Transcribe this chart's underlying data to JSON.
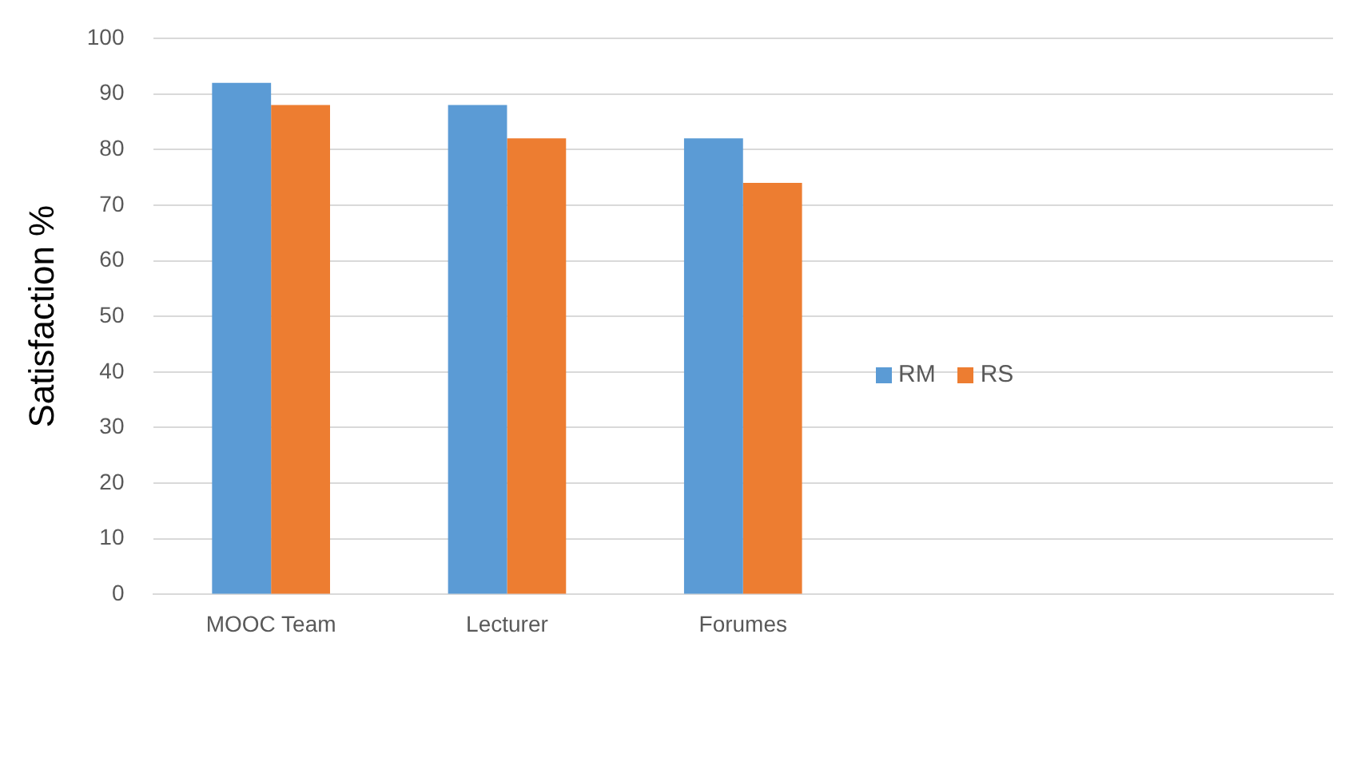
{
  "chart_data": {
    "type": "bar",
    "ylabel": "Satisfaction %",
    "categories": [
      "MOOC Team",
      "Lecturer",
      "Forumes",
      null,
      null
    ],
    "series": [
      {
        "name": "RM",
        "color": "#5b9bd5",
        "values": [
          92,
          88,
          82,
          null,
          null
        ]
      },
      {
        "name": "RS",
        "color": "#ed7d31",
        "values": [
          88,
          82,
          74,
          null,
          null
        ]
      }
    ],
    "ylim": [
      0,
      100
    ],
    "yticks": [
      0,
      10,
      20,
      30,
      40,
      50,
      60,
      70,
      80,
      90,
      100
    ],
    "grid": "y",
    "legend": "right"
  }
}
